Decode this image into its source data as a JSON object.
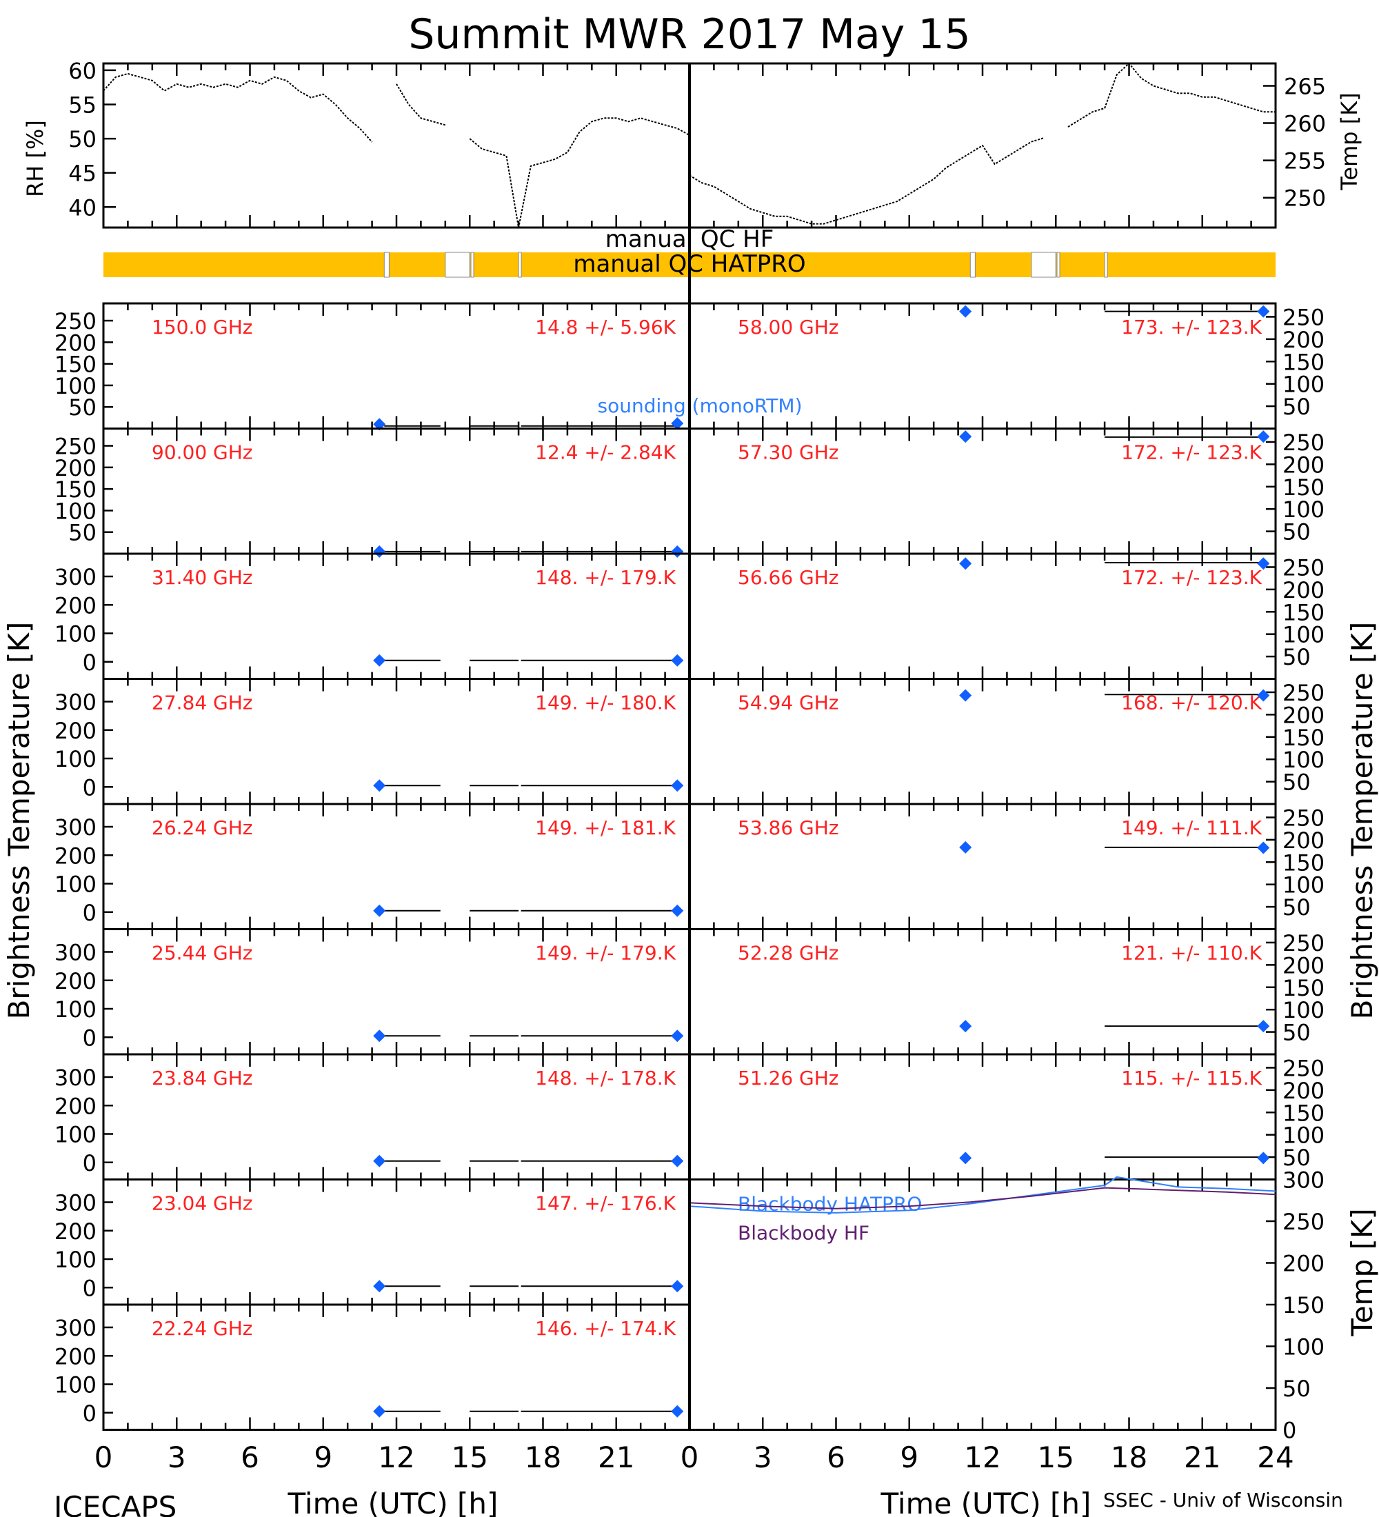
{
  "title": "Summit MWR 2017 May 15",
  "footer_left": "ICECAPS",
  "footer_right": "SSEC - Univ of Wisconsin",
  "x_axis_label": "Time (UTC) [h]",
  "y_axis_label_left": "Brightness Temperature [K]",
  "y_axis_label_right": "Brightness Temperature [K]",
  "x_ticks": [
    "0",
    "3",
    "6",
    "9",
    "12",
    "15",
    "18",
    "21",
    "0",
    "3",
    "6",
    "9",
    "12",
    "15",
    "18",
    "21",
    "24"
  ],
  "colors": {
    "stat_text": "#ff2020",
    "diamond": "#1060ff",
    "qc_bar": "#ffc000",
    "sounding_label": "#3080ff",
    "blackbody_hatpro": "#3080ff",
    "blackbody_hf": "#602070"
  },
  "qc": {
    "hf_label": "manual QC HF",
    "hatpro_label": "manual QC HATPRO"
  },
  "sounding_label": "sounding (monoRTM)",
  "chart_data": [
    {
      "type": "line",
      "id": "rh",
      "ylabel": "RH [%]",
      "xlim": [
        0,
        24
      ],
      "ylim": [
        37,
        61
      ],
      "yticks": [
        "40",
        "45",
        "50",
        "55",
        "60"
      ],
      "x": [
        0,
        0.5,
        1,
        1.5,
        2,
        2.5,
        3,
        3.5,
        4,
        4.5,
        5,
        5.5,
        6,
        6.5,
        7,
        7.5,
        8,
        8.5,
        9,
        9.5,
        10,
        10.5,
        11,
        11.5,
        12,
        12.5,
        13,
        13.5,
        14,
        14.5,
        15,
        15.5,
        16,
        16.5,
        17,
        17.5,
        18,
        18.5,
        19,
        19.5,
        20,
        20.5,
        21,
        21.5,
        22,
        22.5,
        23,
        23.5,
        24
      ],
      "values": [
        57,
        59,
        59.5,
        59,
        58.5,
        57,
        58,
        57.5,
        58,
        57.5,
        58,
        57.5,
        58.5,
        58,
        59,
        58.5,
        57,
        56,
        56.5,
        55,
        53,
        51.5,
        49.5,
        null,
        58,
        55,
        53,
        52.5,
        52,
        null,
        50,
        48.5,
        48,
        47.5,
        37,
        46,
        46.5,
        47,
        48,
        51,
        52.5,
        53,
        53,
        52.5,
        53,
        52.5,
        52,
        51.5,
        50.5
      ]
    },
    {
      "type": "line",
      "id": "temp",
      "ylabel": "Temp [K]",
      "xlim": [
        0,
        24
      ],
      "ylim": [
        246,
        268
      ],
      "yticks": [
        "250",
        "255",
        "260",
        "265"
      ],
      "x": [
        0,
        0.5,
        1,
        1.5,
        2,
        2.5,
        3,
        3.5,
        4,
        4.5,
        5,
        5.5,
        6,
        6.5,
        7,
        7.5,
        8,
        8.5,
        9,
        9.5,
        10,
        10.5,
        11,
        11.5,
        12,
        12.5,
        13,
        13.5,
        14,
        14.5,
        15,
        15.5,
        16,
        16.5,
        17,
        17.5,
        18,
        18.5,
        19,
        19.5,
        20,
        20.5,
        21,
        21.5,
        22,
        22.5,
        23,
        23.5,
        24
      ],
      "values": [
        253,
        252,
        251.5,
        250.5,
        249.5,
        248.5,
        248,
        247.5,
        247.5,
        247,
        246.5,
        246.5,
        247,
        247.5,
        248,
        248.5,
        249,
        249.5,
        250.5,
        251.5,
        252.5,
        254,
        255,
        256,
        257,
        254.5,
        255.5,
        256.5,
        257.5,
        258,
        null,
        259.5,
        260.5,
        261.5,
        262,
        266.5,
        268,
        266,
        265,
        264.5,
        264,
        264,
        263.5,
        263.5,
        263,
        262.5,
        262,
        261.5,
        261.5
      ]
    },
    {
      "type": "bar",
      "id": "qc",
      "categories": [
        "manual QC HATPRO",
        "manual QC HF"
      ],
      "gaps_hatpro_h": [
        [
          11.5,
          11.7
        ],
        [
          14.0,
          15.0
        ],
        [
          15.05,
          15.15
        ],
        [
          17.0,
          17.05
        ],
        [
          35.5,
          35.7
        ],
        [
          38.0,
          39.0
        ],
        [
          39.05,
          39.15
        ],
        [
          41.0,
          41.05
        ]
      ],
      "x_unit": "hours from start of 48h panel pair"
    },
    {
      "type": "line",
      "id": "tb-left",
      "panels": [
        {
          "freq": "150.0 GHz",
          "stat": "14.8 +/-  5.96K",
          "ylim": [
            0,
            290
          ],
          "yticks": [
            "50",
            "100",
            "150",
            "200",
            "250"
          ],
          "level": 6,
          "sounding": [
            11.3,
            23.5
          ],
          "sounding_values": [
            10,
            12
          ]
        },
        {
          "freq": "90.00 GHz",
          "stat": "12.4 +/-  2.84K",
          "ylim": [
            0,
            290
          ],
          "yticks": [
            "50",
            "100",
            "150",
            "200",
            "250"
          ],
          "level": 5,
          "sounding": [
            11.3,
            23.5
          ],
          "sounding_values": [
            5,
            5
          ]
        },
        {
          "freq": "31.40 GHz",
          "stat": "148. +/- 179.K",
          "ylim": [
            -60,
            380
          ],
          "yticks": [
            "0",
            "100",
            "200",
            "300"
          ],
          "level": 5,
          "sounding": [
            11.3,
            23.5
          ],
          "sounding_values": [
            5,
            5
          ]
        },
        {
          "freq": "27.84 GHz",
          "stat": "149. +/- 180.K",
          "ylim": [
            -60,
            380
          ],
          "yticks": [
            "0",
            "100",
            "200",
            "300"
          ],
          "level": 5,
          "sounding": [
            11.3,
            23.5
          ],
          "sounding_values": [
            5,
            5
          ]
        },
        {
          "freq": "26.24 GHz",
          "stat": "149. +/- 181.K",
          "ylim": [
            -60,
            380
          ],
          "yticks": [
            "0",
            "100",
            "200",
            "300"
          ],
          "level": 5,
          "sounding": [
            11.3,
            23.5
          ],
          "sounding_values": [
            5,
            5
          ]
        },
        {
          "freq": "25.44 GHz",
          "stat": "149. +/- 179.K",
          "ylim": [
            -60,
            380
          ],
          "yticks": [
            "0",
            "100",
            "200",
            "300"
          ],
          "level": 5,
          "sounding": [
            11.3,
            23.5
          ],
          "sounding_values": [
            5,
            5
          ]
        },
        {
          "freq": "23.84 GHz",
          "stat": "148. +/- 178.K",
          "ylim": [
            -60,
            380
          ],
          "yticks": [
            "0",
            "100",
            "200",
            "300"
          ],
          "level": 5,
          "sounding": [
            11.3,
            23.5
          ],
          "sounding_values": [
            5,
            5
          ]
        },
        {
          "freq": "23.04 GHz",
          "stat": "147. +/- 176.K",
          "ylim": [
            -60,
            380
          ],
          "yticks": [
            "0",
            "100",
            "200",
            "300"
          ],
          "level": 5,
          "sounding": [
            11.3,
            23.5
          ],
          "sounding_values": [
            5,
            5
          ]
        },
        {
          "freq": "22.24 GHz",
          "stat": "146. +/- 174.K",
          "ylim": [
            -60,
            380
          ],
          "yticks": [
            "0",
            "100",
            "200",
            "300"
          ],
          "level": 5,
          "sounding": [
            11.3,
            23.5
          ],
          "sounding_values": [
            5,
            5
          ]
        }
      ]
    },
    {
      "type": "line",
      "id": "tb-right",
      "panels": [
        {
          "freq": "58.00 GHz",
          "stat": "173. +/- 123.K",
          "ylim": [
            0,
            280
          ],
          "yticks": [
            "50",
            "100",
            "150",
            "200",
            "250"
          ],
          "level": 262,
          "sounding": [
            11.3,
            23.5
          ],
          "sounding_values": [
            262,
            262
          ]
        },
        {
          "freq": "57.30 GHz",
          "stat": "172. +/- 123.K",
          "ylim": [
            0,
            280
          ],
          "yticks": [
            "50",
            "100",
            "150",
            "200",
            "250"
          ],
          "level": 261,
          "sounding": [
            11.3,
            23.5
          ],
          "sounding_values": [
            262,
            262
          ]
        },
        {
          "freq": "56.66 GHz",
          "stat": "172. +/- 123.K",
          "ylim": [
            0,
            280
          ],
          "yticks": [
            "50",
            "100",
            "150",
            "200",
            "250"
          ],
          "level": 260,
          "sounding": [
            11.3,
            23.5
          ],
          "sounding_values": [
            258,
            258
          ]
        },
        {
          "freq": "54.94 GHz",
          "stat": "168. +/- 120.K",
          "ylim": [
            0,
            280
          ],
          "yticks": [
            "50",
            "100",
            "150",
            "200",
            "250"
          ],
          "level": 245,
          "sounding": [
            11.3,
            23.5
          ],
          "sounding_values": [
            243,
            243
          ]
        },
        {
          "freq": "53.86 GHz",
          "stat": "149. +/- 111.K",
          "ylim": [
            0,
            280
          ],
          "yticks": [
            "50",
            "100",
            "150",
            "200",
            "250"
          ],
          "level": 183,
          "sounding": [
            11.3,
            23.5
          ],
          "sounding_values": [
            183,
            182
          ]
        },
        {
          "freq": "52.28 GHz",
          "stat": "121. +/- 110.K",
          "ylim": [
            0,
            280
          ],
          "yticks": [
            "50",
            "100",
            "150",
            "200",
            "250"
          ],
          "level": 63,
          "sounding": [
            11.3,
            23.5
          ],
          "sounding_values": [
            63,
            63
          ]
        },
        {
          "freq": "51.26 GHz",
          "stat": "115. +/- 115.K",
          "ylim": [
            0,
            280
          ],
          "yticks": [
            "50",
            "100",
            "150",
            "200",
            "250"
          ],
          "level": 50,
          "sounding": [
            11.3,
            23.5
          ],
          "sounding_values": [
            48,
            48
          ]
        }
      ]
    },
    {
      "type": "line",
      "id": "blackbody",
      "ylabel": "Temp [K]",
      "ylim": [
        0,
        300
      ],
      "yticks": [
        "0",
        "50",
        "100",
        "150",
        "200",
        "250",
        "300"
      ],
      "series": [
        {
          "name": "Blackbody HATPRO",
          "x": [
            0,
            3,
            6,
            9,
            11.5,
            14,
            17,
            17.5,
            20,
            22,
            24
          ],
          "values": [
            268,
            262,
            260,
            263,
            271,
            281,
            293,
            303,
            291,
            289,
            286
          ]
        },
        {
          "name": "Blackbody HF",
          "x": [
            0,
            3,
            6,
            9,
            11.5,
            14,
            17,
            20,
            22,
            24
          ],
          "values": [
            272,
            268,
            265,
            268,
            273,
            280,
            290,
            287,
            285,
            282
          ]
        }
      ]
    }
  ]
}
